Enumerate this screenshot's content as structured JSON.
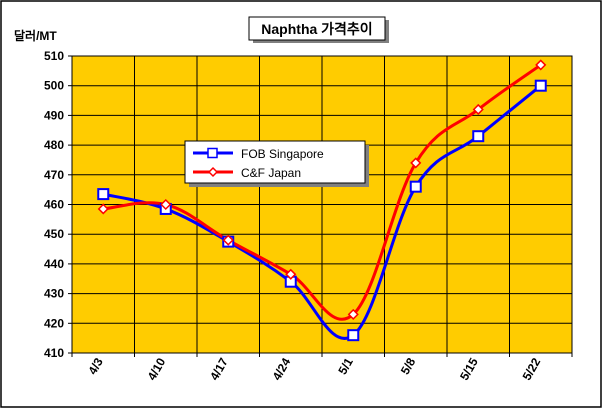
{
  "chart_data": {
    "type": "line",
    "title": "Naphtha 가격추이",
    "ylabel": "달러/MT",
    "xlabel": "",
    "categories": [
      "4/3",
      "4/10",
      "4/17",
      "4/24",
      "5/1",
      "5/8",
      "5/15",
      "5/22"
    ],
    "ylim": [
      410,
      510
    ],
    "yticks": [
      410,
      420,
      430,
      440,
      450,
      460,
      470,
      480,
      490,
      500,
      510
    ],
    "grid": true,
    "legend_position": "center-left",
    "series": [
      {
        "name": "FOB Singapore",
        "values": [
          463.5,
          458.5,
          447.5,
          434.0,
          416.0,
          466.0,
          483.0,
          500.0
        ],
        "color": "#0000FF",
        "marker": "square"
      },
      {
        "name": "C&F Japan",
        "values": [
          458.5,
          460.0,
          448.0,
          436.5,
          423.0,
          474.0,
          492.0,
          507.0
        ],
        "color": "#FF0000",
        "marker": "diamond"
      }
    ],
    "plot_background": "#FFCC00"
  }
}
